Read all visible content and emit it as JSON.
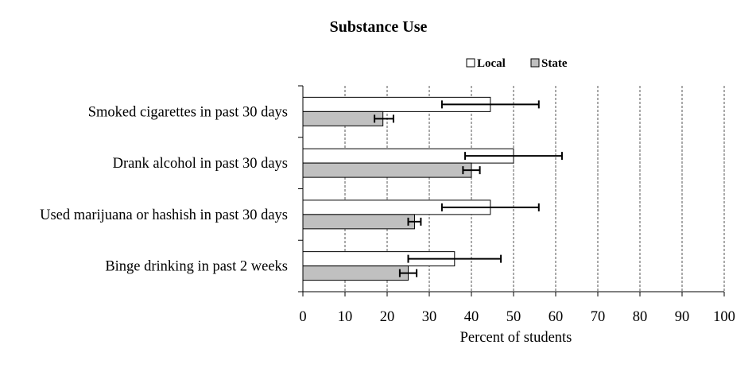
{
  "chart_data": {
    "type": "bar",
    "orientation": "horizontal",
    "title": "Substance Use",
    "xlabel": "Percent of students",
    "ylabel": "",
    "xlim": [
      0,
      100
    ],
    "xticks": [
      0,
      10,
      20,
      30,
      40,
      50,
      60,
      70,
      80,
      90,
      100
    ],
    "grid": "vertical dashed",
    "legend_position": "top-right",
    "categories": [
      "Smoked cigarettes in past 30 days",
      "Drank alcohol in past 30 days",
      "Used marijuana or hashish in past 30 days",
      "Binge drinking in past 2 weeks"
    ],
    "series": [
      {
        "name": "Local",
        "color": "#ffffff",
        "values": [
          44.5,
          50,
          44.5,
          36
        ],
        "error_low": [
          33,
          38.5,
          33,
          25
        ],
        "error_high": [
          56,
          61.5,
          56,
          47
        ]
      },
      {
        "name": "State",
        "color": "#c0c0c0",
        "values": [
          19,
          40,
          26.5,
          25
        ],
        "error_low": [
          17,
          38,
          25,
          23
        ],
        "error_high": [
          21.5,
          42,
          28,
          27
        ]
      }
    ]
  }
}
